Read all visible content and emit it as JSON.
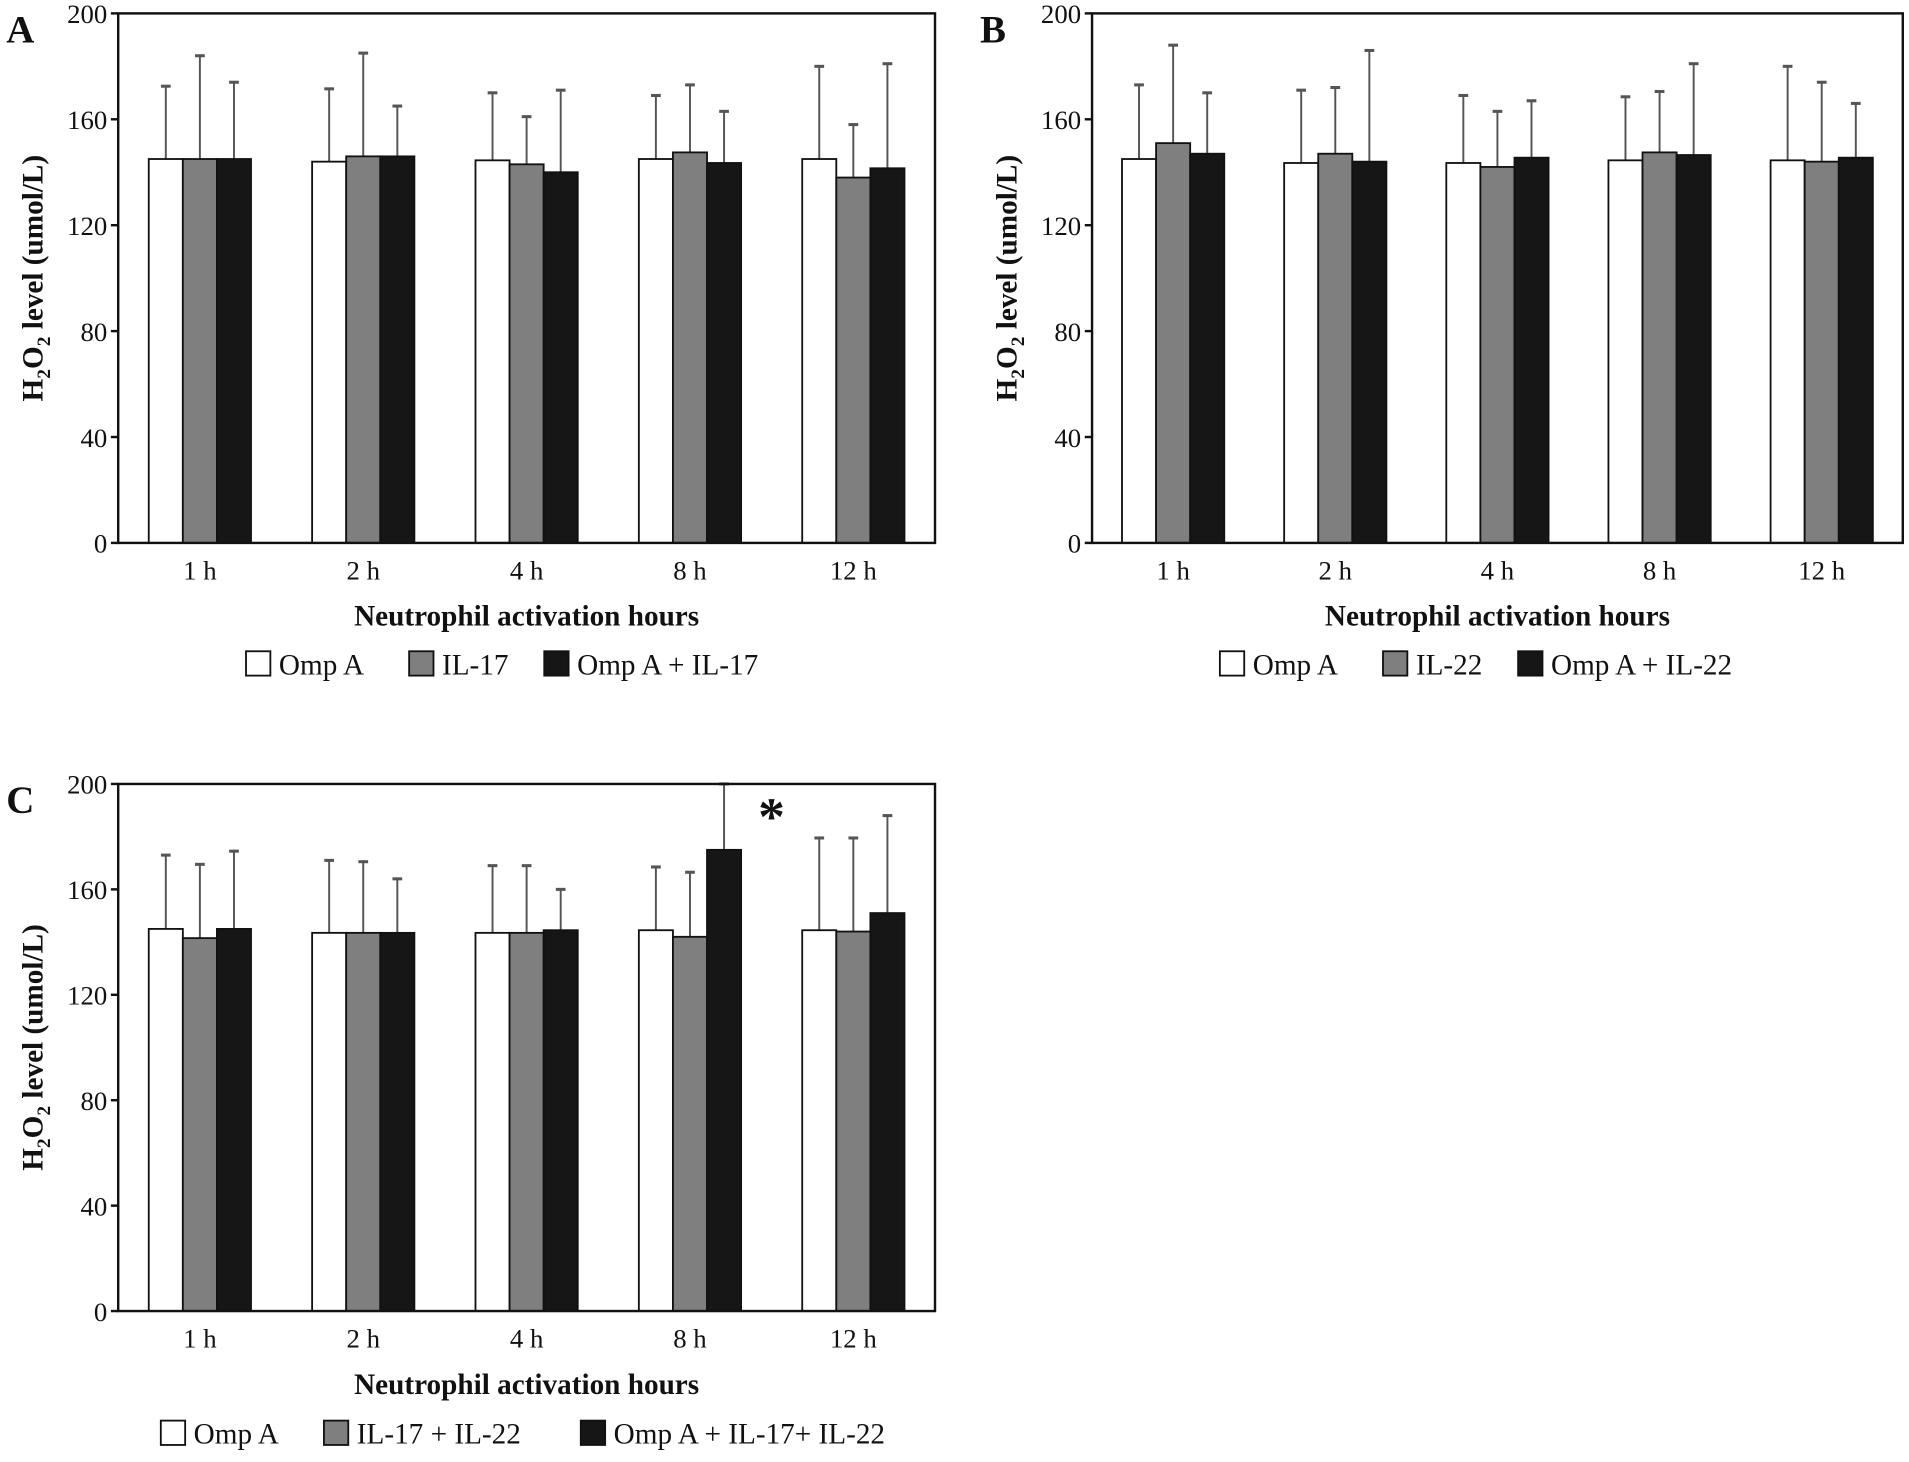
{
  "chart_data": [
    {
      "type": "bar",
      "panel_label": "A",
      "categories": [
        "1 h",
        "2 h",
        "4 h",
        "8 h",
        "12 h"
      ],
      "xlabel": "Neutrophil activation hours",
      "ylabel_parts": [
        "H",
        "2",
        "O",
        "2",
        " level (umol/L)"
      ],
      "ylim": [
        0,
        200
      ],
      "yticks": [
        "0",
        "40",
        "80",
        "120",
        "160",
        "200"
      ],
      "grid": false,
      "legend": "bottom",
      "series": [
        {
          "name": "Omp A",
          "color": "#ffffff",
          "values": [
            145,
            144,
            144.5,
            145,
            145
          ],
          "error_top": [
            172.5,
            171.5,
            170,
            169,
            180
          ]
        },
        {
          "name": "IL-17",
          "color": "#7f7f7f",
          "values": [
            145,
            146,
            143,
            147.5,
            138
          ],
          "error_top": [
            184,
            185,
            161,
            173,
            158
          ]
        },
        {
          "name": "Omp A + IL-17",
          "color": "#161616",
          "values": [
            145,
            146,
            140,
            143.5,
            141.5
          ],
          "error_top": [
            174,
            165,
            171,
            163,
            181
          ]
        }
      ],
      "annotations": []
    },
    {
      "type": "bar",
      "panel_label": "B",
      "categories": [
        "1 h",
        "2 h",
        "4 h",
        "8 h",
        "12 h"
      ],
      "xlabel": "Neutrophil activation hours",
      "ylabel_parts": [
        "H",
        "2",
        "O",
        "2",
        " level (umol/L)"
      ],
      "ylim": [
        0,
        200
      ],
      "yticks": [
        "0",
        "40",
        "80",
        "120",
        "160",
        "200"
      ],
      "grid": false,
      "legend": "bottom",
      "series": [
        {
          "name": "Omp A",
          "color": "#ffffff",
          "values": [
            145,
            143.5,
            143.5,
            144.5,
            144.5
          ],
          "error_top": [
            173,
            171,
            169,
            168.5,
            180
          ]
        },
        {
          "name": "IL-22",
          "color": "#7f7f7f",
          "values": [
            151,
            147,
            142,
            147.5,
            144
          ],
          "error_top": [
            188,
            172,
            163,
            170.5,
            174
          ]
        },
        {
          "name": "Omp A + IL-22",
          "color": "#161616",
          "values": [
            147,
            144,
            145.5,
            146.5,
            145.5
          ],
          "error_top": [
            170,
            186,
            167,
            181,
            166
          ]
        }
      ],
      "annotations": []
    },
    {
      "type": "bar",
      "panel_label": "C",
      "categories": [
        "1 h",
        "2 h",
        "4 h",
        "8 h",
        "12 h"
      ],
      "xlabel": "Neutrophil activation hours",
      "ylabel_parts": [
        "H",
        "2",
        "O",
        "2",
        " level (umol/L)"
      ],
      "ylim": [
        0,
        200
      ],
      "yticks": [
        "0",
        "40",
        "80",
        "120",
        "160",
        "200"
      ],
      "grid": false,
      "legend": "bottom",
      "series": [
        {
          "name": "Omp A",
          "color": "#ffffff",
          "values": [
            145,
            143.5,
            143.5,
            144.5,
            144.5
          ],
          "error_top": [
            173,
            171,
            169,
            168.5,
            179.5
          ]
        },
        {
          "name": "IL-17 + IL-22",
          "color": "#7f7f7f",
          "values": [
            141.5,
            143.5,
            143.5,
            142,
            144
          ],
          "error_top": [
            169.5,
            170.5,
            169,
            166.5,
            179.5
          ]
        },
        {
          "name": "Omp A + IL-17+ IL-22",
          "color": "#161616",
          "values": [
            145,
            143.5,
            144.5,
            175,
            151
          ],
          "error_top": [
            174.5,
            164,
            160,
            200,
            188
          ]
        }
      ],
      "annotations": [
        {
          "text": "*",
          "category": "8 h",
          "series": "Omp A + IL-17+ IL-22"
        }
      ]
    }
  ]
}
